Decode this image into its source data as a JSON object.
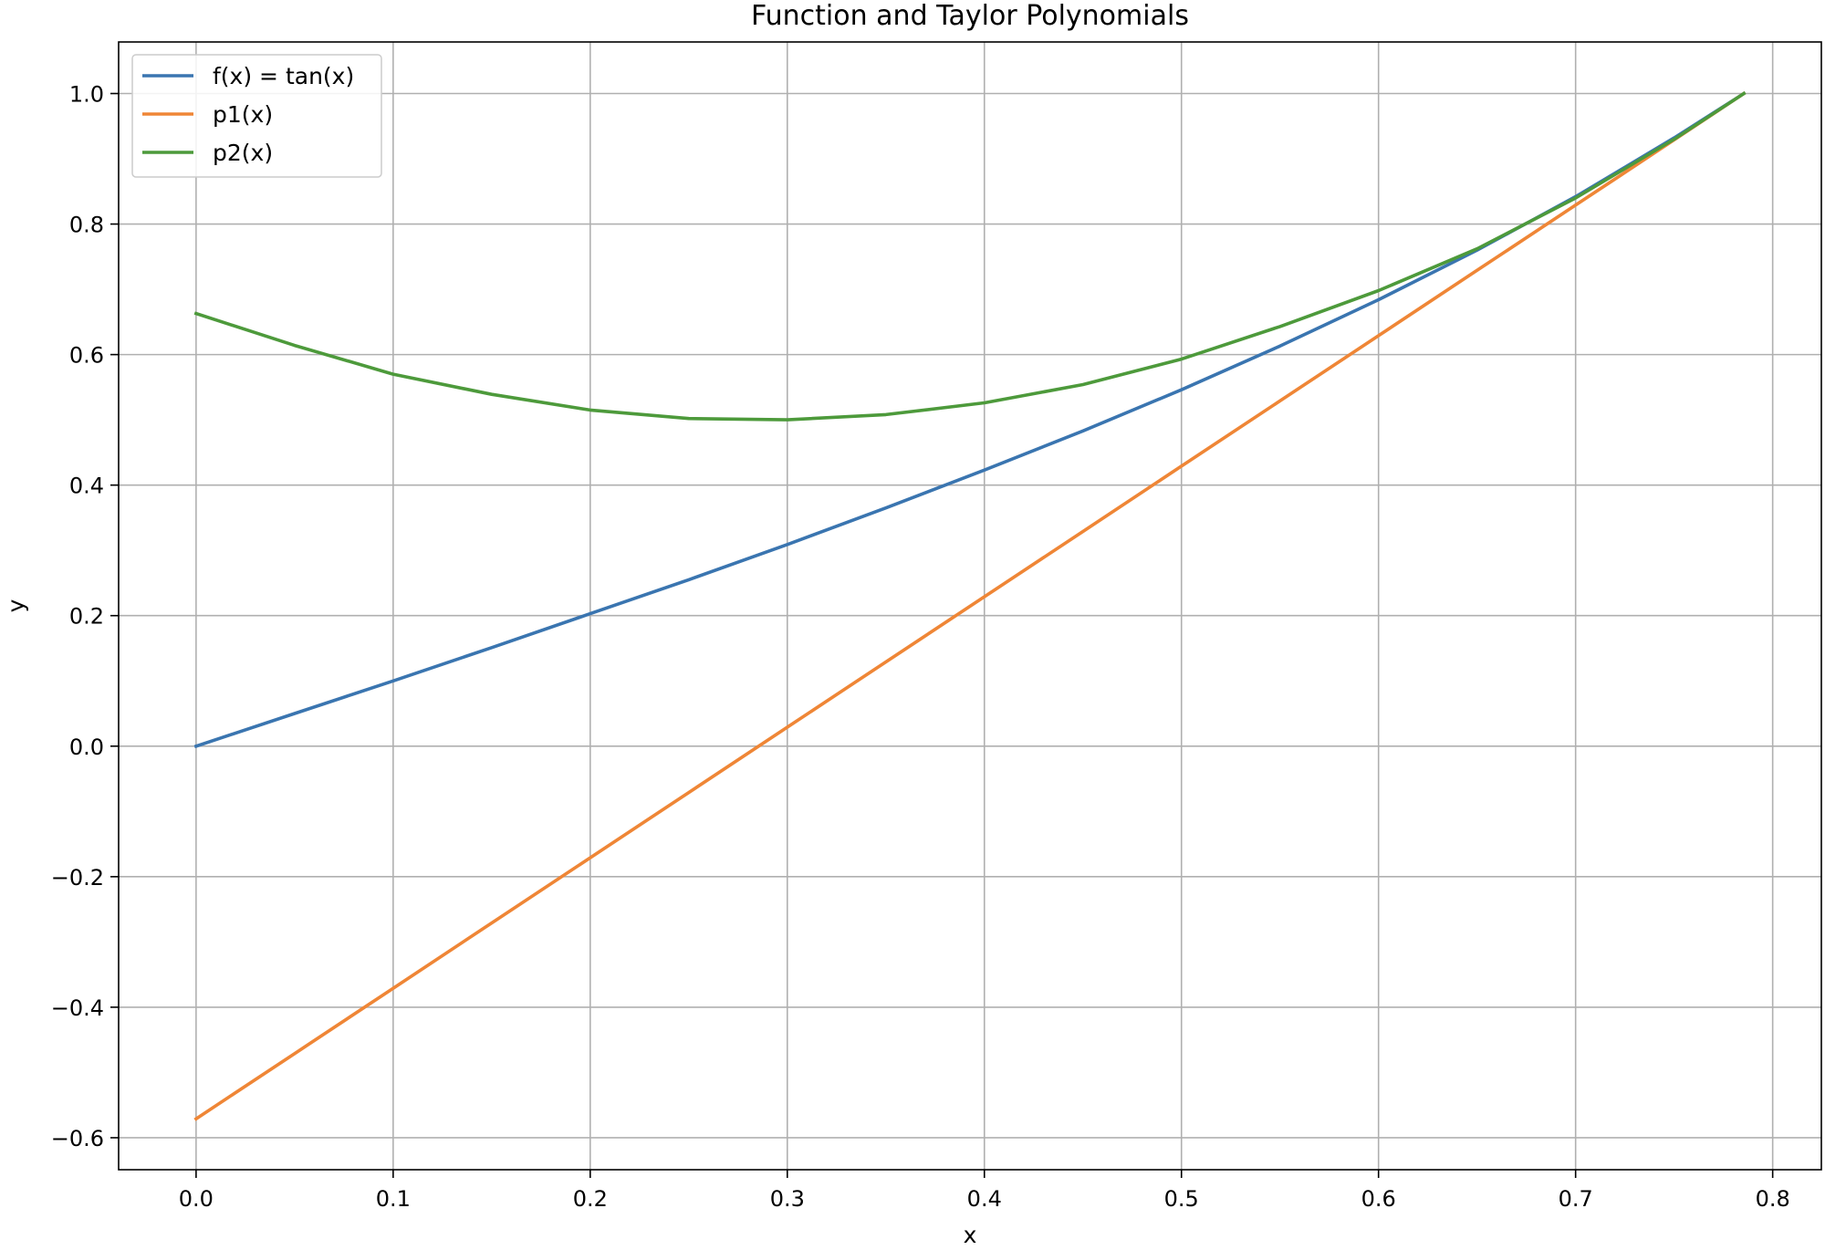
{
  "chart_data": {
    "type": "line",
    "title": "Function and Taylor Polynomials",
    "xlabel": "x",
    "ylabel": "y",
    "xlim": [
      -0.0393,
      0.8247
    ],
    "ylim": [
      -0.649,
      1.079
    ],
    "x_ticks": [
      0.0,
      0.1,
      0.2,
      0.3,
      0.4,
      0.5,
      0.6,
      0.7,
      0.8
    ],
    "x_tick_labels": [
      "0.0",
      "0.1",
      "0.2",
      "0.3",
      "0.4",
      "0.5",
      "0.6",
      "0.7",
      "0.8"
    ],
    "y_ticks": [
      -0.6,
      -0.4,
      -0.2,
      0.0,
      0.2,
      0.4,
      0.6,
      0.8,
      1.0
    ],
    "y_tick_labels": [
      "−0.6",
      "−0.4",
      "−0.2",
      "0.0",
      "0.2",
      "0.4",
      "0.6",
      "0.8",
      "1.0"
    ],
    "grid": true,
    "legend_position": "upper left",
    "x": [
      0.0,
      0.05,
      0.1,
      0.15,
      0.2,
      0.25,
      0.3,
      0.35,
      0.4,
      0.45,
      0.5,
      0.55,
      0.6,
      0.65,
      0.7,
      0.75,
      0.7854
    ],
    "series": [
      {
        "name": "f(x) = tan(x)",
        "color": "#3a75b0",
        "values": [
          0.0,
          0.05,
          0.1,
          0.151,
          0.203,
          0.255,
          0.309,
          0.365,
          0.423,
          0.483,
          0.546,
          0.613,
          0.684,
          0.76,
          0.842,
          0.932,
          1.0
        ]
      },
      {
        "name": "p1(x)",
        "color": "#ef8636",
        "values": [
          -0.571,
          -0.471,
          -0.371,
          -0.271,
          -0.171,
          -0.071,
          0.029,
          0.129,
          0.229,
          0.329,
          0.429,
          0.529,
          0.629,
          0.729,
          0.829,
          0.929,
          1.0
        ]
      },
      {
        "name": "p2(x)",
        "color": "#4d9a3b",
        "values": [
          0.663,
          0.614,
          0.57,
          0.539,
          0.515,
          0.502,
          0.5,
          0.508,
          0.526,
          0.554,
          0.593,
          0.643,
          0.698,
          0.762,
          0.84,
          0.93,
          1.0
        ]
      }
    ]
  }
}
